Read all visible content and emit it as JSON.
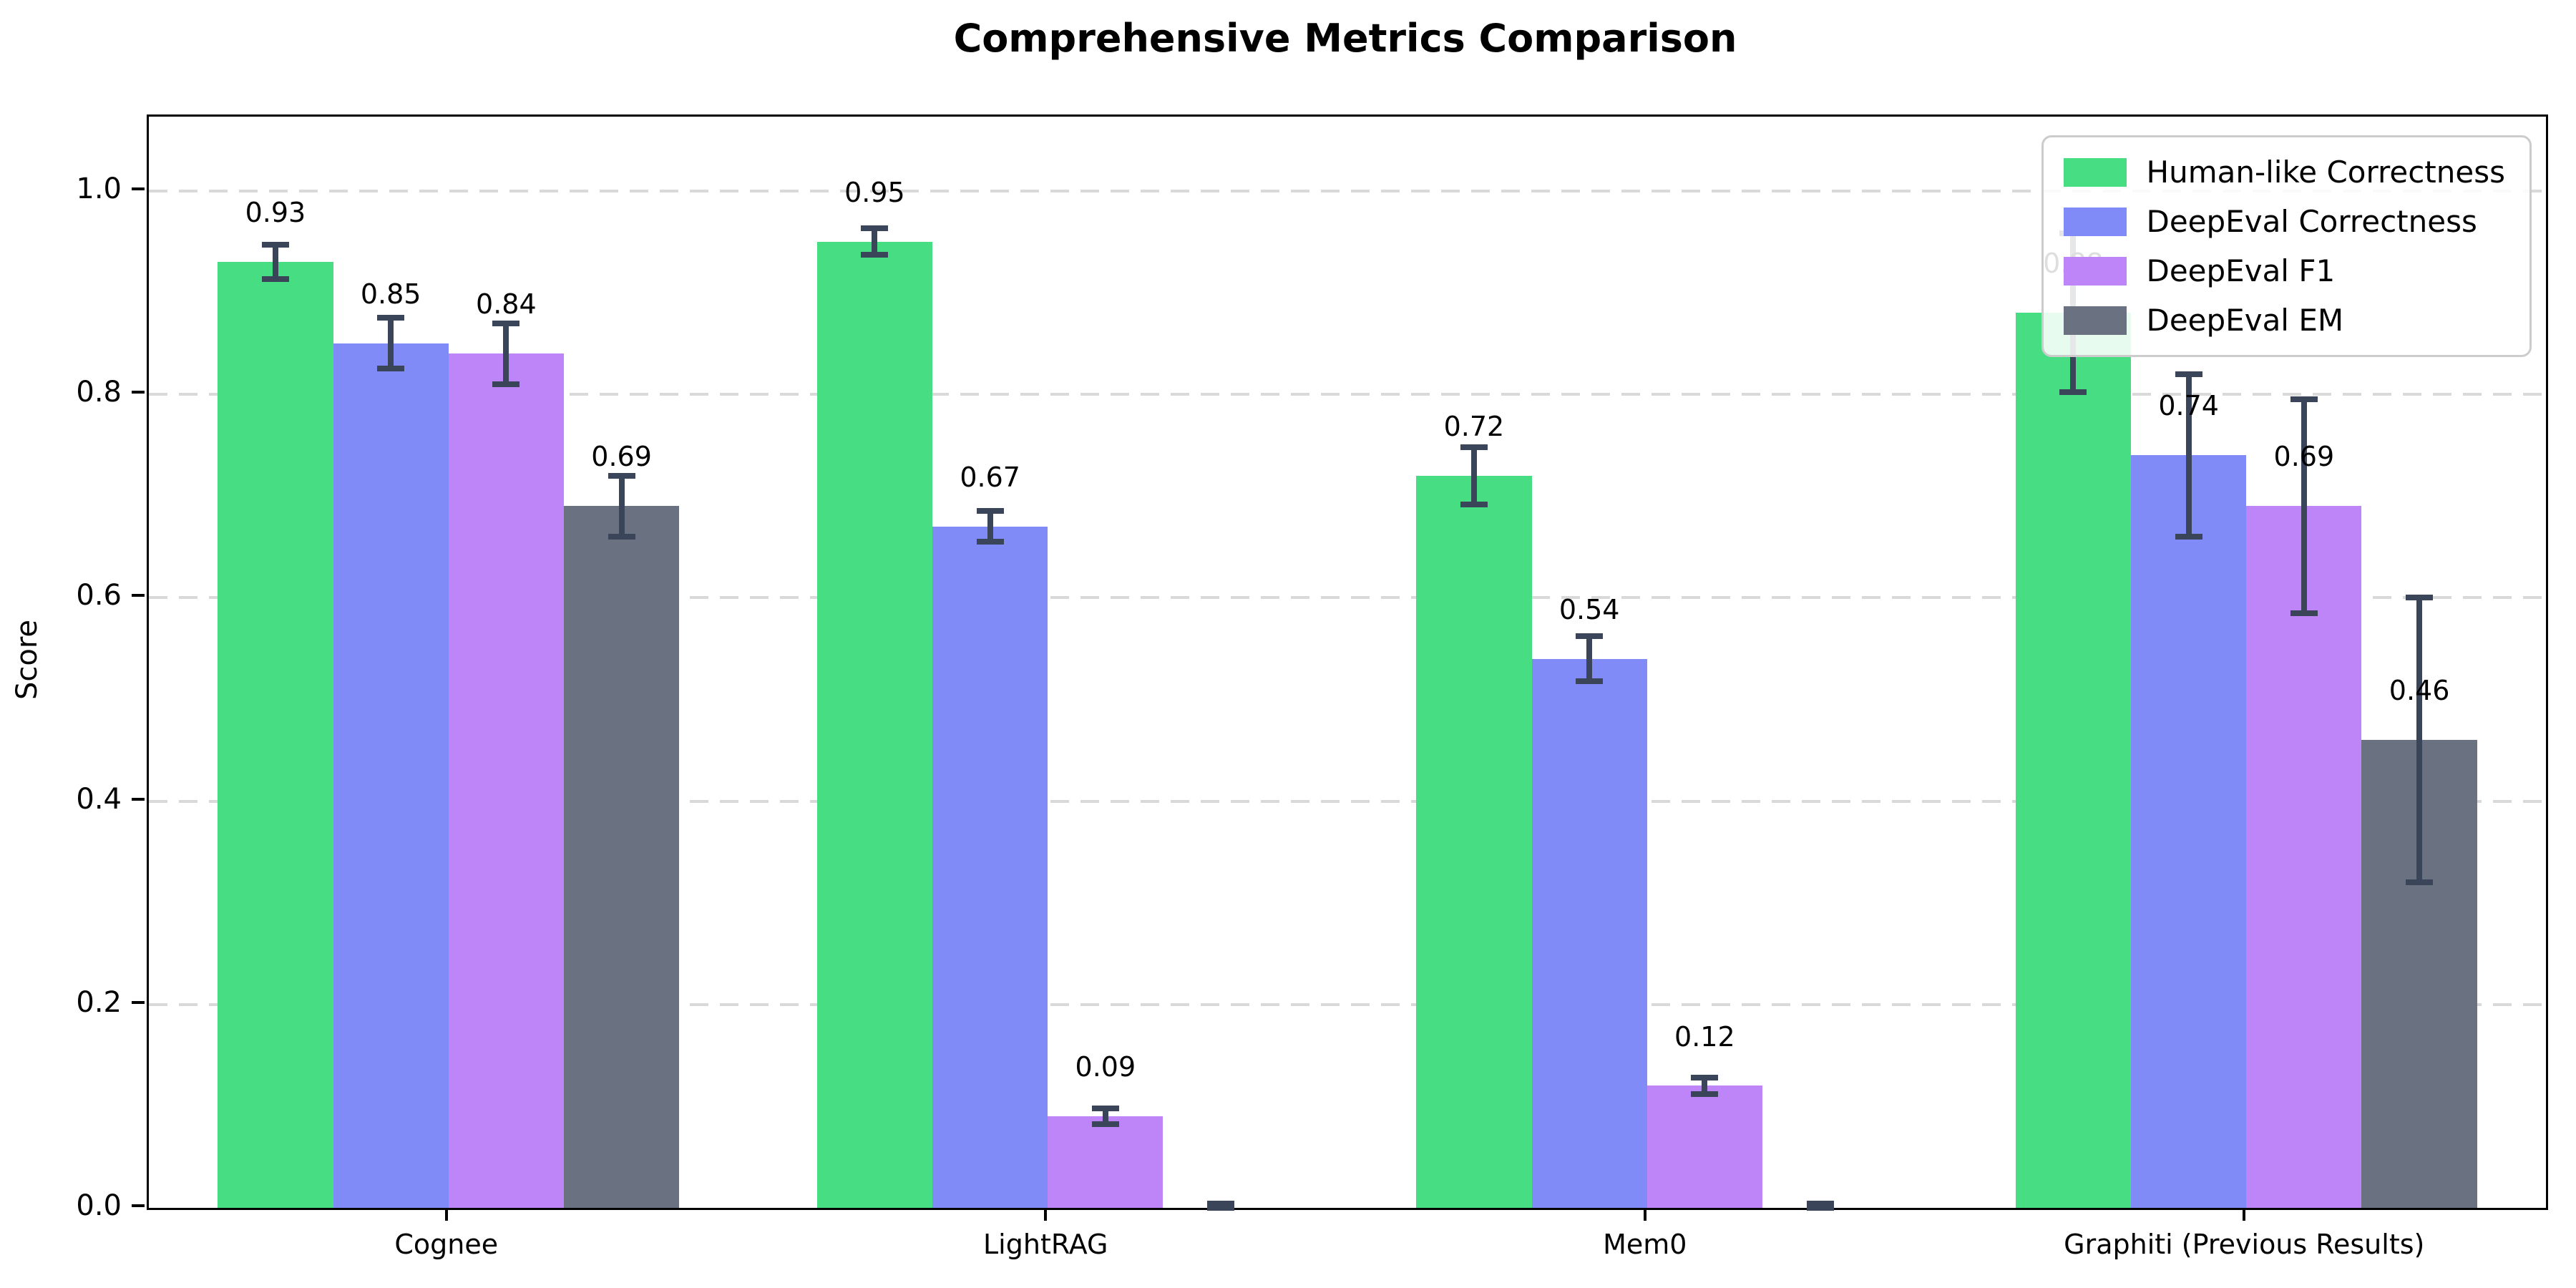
{
  "title": "Comprehensive Metrics Comparison",
  "axes": {
    "ylabel": "Score",
    "yticks": [
      "0.0",
      "0.2",
      "0.4",
      "0.6",
      "0.8",
      "1.0"
    ],
    "ytick_values": [
      0.0,
      0.2,
      0.4,
      0.6,
      0.8,
      1.0
    ]
  },
  "chart_data": {
    "type": "bar",
    "title": "Comprehensive Metrics Comparison",
    "xlabel": "",
    "ylabel": "Score",
    "categories": [
      "Cognee",
      "LightRAG",
      "Mem0",
      "Graphiti (Previous Results)"
    ],
    "series": [
      {
        "name": "Human-like Correctness",
        "color": "#47dd82",
        "values": [
          0.93,
          0.95,
          0.72,
          0.88
        ],
        "errors": [
          0.017,
          0.013,
          0.028,
          0.078
        ]
      },
      {
        "name": "DeepEval Correctness",
        "color": "#808bf8",
        "values": [
          0.85,
          0.67,
          0.54,
          0.74
        ],
        "errors": [
          0.025,
          0.015,
          0.022,
          0.08
        ]
      },
      {
        "name": "DeepEval F1",
        "color": "#bd85f8",
        "values": [
          0.84,
          0.09,
          0.12,
          0.69
        ],
        "errors": [
          0.03,
          0.008,
          0.008,
          0.105
        ]
      },
      {
        "name": "DeepEval EM",
        "color": "#6a7180",
        "values": [
          0.69,
          0.0,
          0.0,
          0.46
        ],
        "errors": [
          0.03,
          0.004,
          0.004,
          0.14
        ]
      }
    ],
    "value_label_format": "0.00",
    "ylim": [
      0,
      1.073
    ],
    "grid": "horizontal dashed",
    "legend_position": "upper right",
    "error_bar_color": "#3a4559"
  }
}
